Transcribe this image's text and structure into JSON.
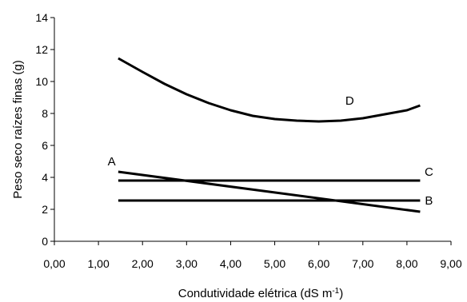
{
  "chart_data": {
    "type": "line",
    "xlabel": "Condutividade elétrica (dS m",
    "xlabel_sup": "-1",
    "xlabel_suffix": ")",
    "ylabel": "Peso seco raízes finas (g)",
    "xlim": [
      0,
      9
    ],
    "ylim": [
      0,
      14
    ],
    "xticks": [
      0,
      1,
      2,
      3,
      4,
      5,
      6,
      7,
      8,
      9
    ],
    "xtick_labels": [
      "0,00",
      "1,00",
      "2,00",
      "3,00",
      "4,00",
      "5,00",
      "6,00",
      "7,00",
      "8,00",
      "9,00"
    ],
    "yticks": [
      0,
      2,
      4,
      6,
      8,
      10,
      12,
      14
    ],
    "ytick_labels": [
      "0",
      "2",
      "4",
      "6",
      "8",
      "10",
      "12",
      "14"
    ],
    "grid": false,
    "line_color": "#000000",
    "series": [
      {
        "name": "A",
        "x": [
          1.45,
          8.3
        ],
        "y": [
          4.35,
          1.85
        ]
      },
      {
        "name": "B",
        "x": [
          1.45,
          8.3
        ],
        "y": [
          2.55,
          2.55
        ]
      },
      {
        "name": "C",
        "x": [
          1.45,
          8.3
        ],
        "y": [
          3.8,
          3.8
        ]
      },
      {
        "name": "D",
        "x": [
          1.45,
          2.0,
          2.5,
          3.0,
          3.5,
          4.0,
          4.5,
          5.0,
          5.5,
          6.0,
          6.5,
          7.0,
          7.5,
          8.0,
          8.3
        ],
        "y": [
          11.45,
          10.6,
          9.85,
          9.2,
          8.65,
          8.2,
          7.85,
          7.65,
          7.55,
          7.5,
          7.55,
          7.7,
          7.95,
          8.2,
          8.5
        ]
      }
    ],
    "label_positions": {
      "A": [
        1.3,
        5.0
      ],
      "B": [
        8.5,
        2.55
      ],
      "C": [
        8.5,
        4.35
      ],
      "D": [
        6.7,
        8.8
      ]
    }
  }
}
